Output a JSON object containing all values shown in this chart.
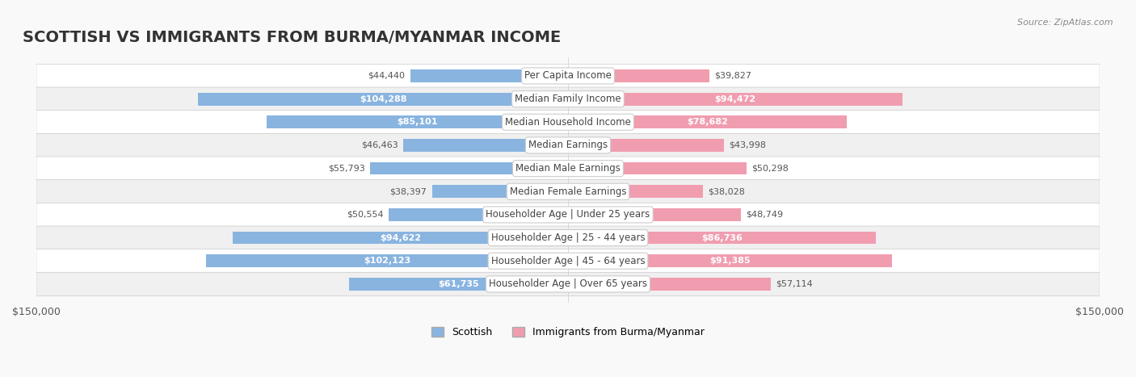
{
  "title": "SCOTTISH VS IMMIGRANTS FROM BURMA/MYANMAR INCOME",
  "source": "Source: ZipAtlas.com",
  "categories": [
    "Per Capita Income",
    "Median Family Income",
    "Median Household Income",
    "Median Earnings",
    "Median Male Earnings",
    "Median Female Earnings",
    "Householder Age | Under 25 years",
    "Householder Age | 25 - 44 years",
    "Householder Age | 45 - 64 years",
    "Householder Age | Over 65 years"
  ],
  "scottish_values": [
    44440,
    104288,
    85101,
    46463,
    55793,
    38397,
    50554,
    94622,
    102123,
    61735
  ],
  "immigrant_values": [
    39827,
    94472,
    78682,
    43998,
    50298,
    38028,
    48749,
    86736,
    91385,
    57114
  ],
  "scottish_color": "#89b4e0",
  "immigrant_color": "#f09db0",
  "scottish_label_color_threshold": 60000,
  "immigrant_label_color_threshold": 60000,
  "bar_height": 0.55,
  "xlim": 150000,
  "background_color": "#f5f5f5",
  "row_bg_colors": [
    "#ffffff",
    "#f0f0f0"
  ],
  "title_fontsize": 14,
  "label_fontsize": 8.5,
  "value_fontsize": 8,
  "legend_fontsize": 9,
  "source_fontsize": 8
}
